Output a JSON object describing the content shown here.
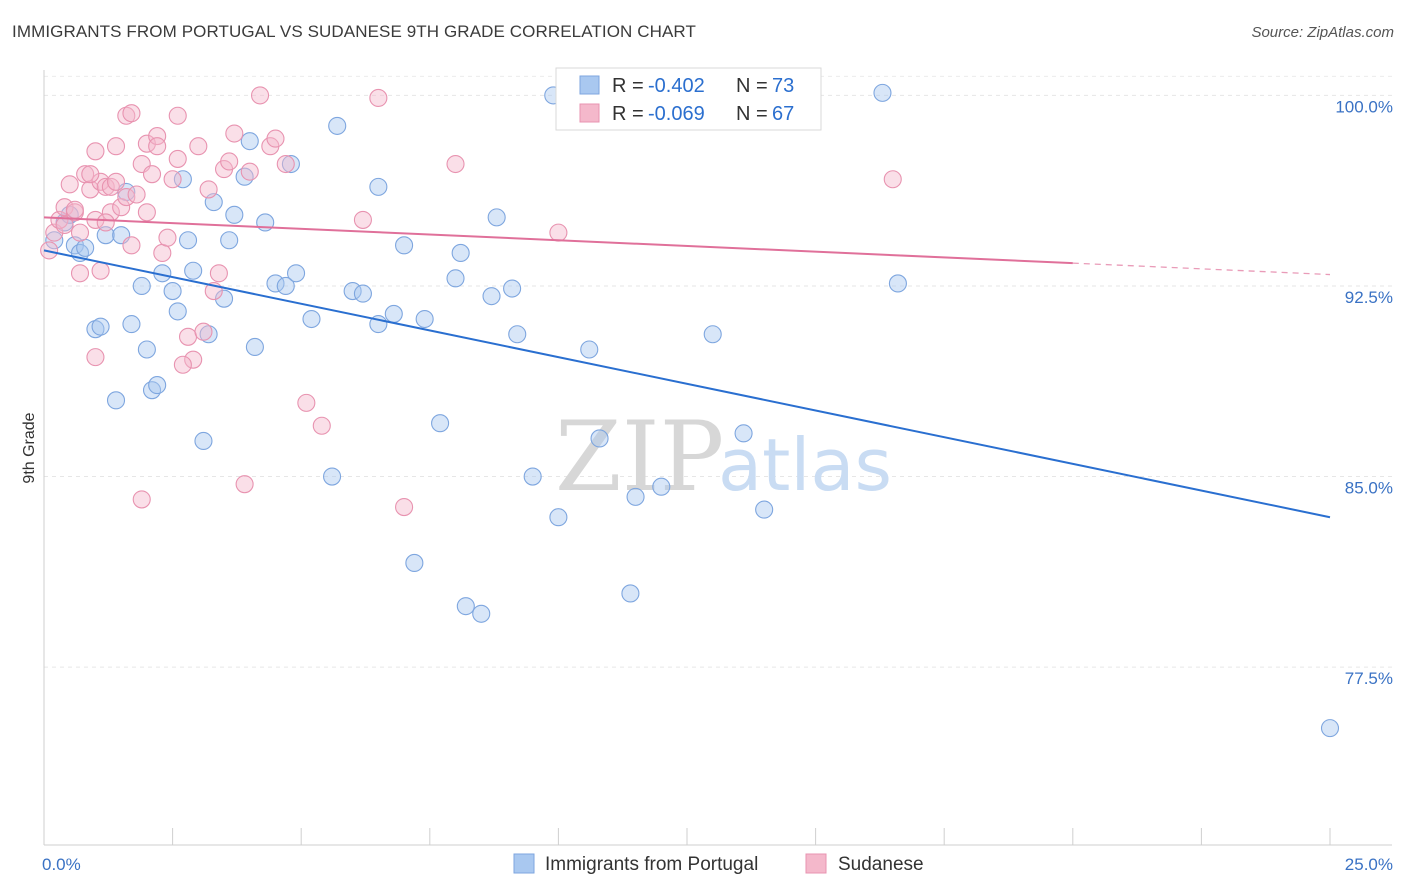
{
  "header": {
    "title": "IMMIGRANTS FROM PORTUGAL VS SUDANESE 9TH GRADE CORRELATION CHART",
    "source": "Source: ZipAtlas.com"
  },
  "watermark": {
    "zip": "ZIP",
    "atlas": "atlas"
  },
  "legend": {
    "r_label": "R =",
    "n_label": "N =",
    "rows": [
      {
        "r": "-0.402",
        "n": "73",
        "color": "#a9c8f0"
      },
      {
        "r": "-0.069",
        "n": "67",
        "color": "#f4b8cb"
      }
    ]
  },
  "bottom_legend": [
    {
      "label": "Immigrants from Portugal",
      "color": "#a9c8f0"
    },
    {
      "label": "Sudanese",
      "color": "#f4b8cb"
    }
  ],
  "chart_data": {
    "type": "scatter",
    "ylabel": "9th Grade",
    "xlim": [
      0,
      25
    ],
    "ylim": [
      70.5,
      101
    ],
    "x_tick_labels": [
      {
        "value": 0,
        "label": "0.0%"
      },
      {
        "value": 25,
        "label": "25.0%"
      }
    ],
    "y_tick_labels": [
      {
        "value": 100,
        "label": "100.0%"
      },
      {
        "value": 92.5,
        "label": "92.5%"
      },
      {
        "value": 85,
        "label": "85.0%"
      },
      {
        "value": 77.5,
        "label": "77.5%"
      }
    ],
    "grid": true,
    "series": [
      {
        "name": "Immigrants from Portugal",
        "color": "#a9c8f0",
        "line_color": "#2a6fd0",
        "trend": {
          "x": [
            0.0,
            25.0
          ],
          "y": [
            93.9,
            83.4
          ]
        },
        "points": [
          [
            0.2,
            94.3
          ],
          [
            0.4,
            95.0
          ],
          [
            0.5,
            95.3
          ],
          [
            0.6,
            94.1
          ],
          [
            0.7,
            93.8
          ],
          [
            0.8,
            94.0
          ],
          [
            1.0,
            90.8
          ],
          [
            1.1,
            90.9
          ],
          [
            1.2,
            94.5
          ],
          [
            1.4,
            88.0
          ],
          [
            1.5,
            94.5
          ],
          [
            1.6,
            96.2
          ],
          [
            1.7,
            91.0
          ],
          [
            1.9,
            92.5
          ],
          [
            2.0,
            90.0
          ],
          [
            2.1,
            88.4
          ],
          [
            2.2,
            88.6
          ],
          [
            2.3,
            93.0
          ],
          [
            2.5,
            92.3
          ],
          [
            2.6,
            91.5
          ],
          [
            2.7,
            96.7
          ],
          [
            2.8,
            94.3
          ],
          [
            2.9,
            93.1
          ],
          [
            3.1,
            86.4
          ],
          [
            3.2,
            90.6
          ],
          [
            3.3,
            95.8
          ],
          [
            3.5,
            92.0
          ],
          [
            3.6,
            94.3
          ],
          [
            3.7,
            95.3
          ],
          [
            3.9,
            96.8
          ],
          [
            4.0,
            98.2
          ],
          [
            4.1,
            90.1
          ],
          [
            4.3,
            95.0
          ],
          [
            4.5,
            92.6
          ],
          [
            4.7,
            92.5
          ],
          [
            4.8,
            97.3
          ],
          [
            4.9,
            93.0
          ],
          [
            5.2,
            91.2
          ],
          [
            5.6,
            85.0
          ],
          [
            5.7,
            98.8
          ],
          [
            6.0,
            92.3
          ],
          [
            6.2,
            92.2
          ],
          [
            6.5,
            96.4
          ],
          [
            6.5,
            91.0
          ],
          [
            6.8,
            91.4
          ],
          [
            7.0,
            94.1
          ],
          [
            7.2,
            81.6
          ],
          [
            7.4,
            91.2
          ],
          [
            7.7,
            87.1
          ],
          [
            8.0,
            92.8
          ],
          [
            8.1,
            93.8
          ],
          [
            8.2,
            79.9
          ],
          [
            8.5,
            79.6
          ],
          [
            8.7,
            92.1
          ],
          [
            8.8,
            95.2
          ],
          [
            9.1,
            92.4
          ],
          [
            9.2,
            90.6
          ],
          [
            9.5,
            85.0
          ],
          [
            9.9,
            100.0
          ],
          [
            10.2,
            100.0
          ],
          [
            10.6,
            90.0
          ],
          [
            10.8,
            86.5
          ],
          [
            11.4,
            80.4
          ],
          [
            11.5,
            84.2
          ],
          [
            12.0,
            84.6
          ],
          [
            13.0,
            90.6
          ],
          [
            13.6,
            86.7
          ],
          [
            14.0,
            83.7
          ],
          [
            14.4,
            100.0
          ],
          [
            16.3,
            100.1
          ],
          [
            16.6,
            92.6
          ],
          [
            10.0,
            83.4
          ],
          [
            25.0,
            75.1
          ]
        ]
      },
      {
        "name": "Sudanese",
        "color": "#f4b8cb",
        "line_color": "#e0709a",
        "trend": {
          "x": [
            0.0,
            20.0
          ],
          "y": [
            95.2,
            93.4
          ]
        },
        "points": [
          [
            0.1,
            93.9
          ],
          [
            0.2,
            94.6
          ],
          [
            0.3,
            95.1
          ],
          [
            0.4,
            95.6
          ],
          [
            0.4,
            94.9
          ],
          [
            0.5,
            96.5
          ],
          [
            0.6,
            95.4
          ],
          [
            0.7,
            94.6
          ],
          [
            0.7,
            93.0
          ],
          [
            0.8,
            96.9
          ],
          [
            0.9,
            96.3
          ],
          [
            1.0,
            97.8
          ],
          [
            1.0,
            95.1
          ],
          [
            1.0,
            89.7
          ],
          [
            1.1,
            93.1
          ],
          [
            1.1,
            96.6
          ],
          [
            1.2,
            96.4
          ],
          [
            1.3,
            95.4
          ],
          [
            1.3,
            96.4
          ],
          [
            1.4,
            96.6
          ],
          [
            1.4,
            98.0
          ],
          [
            1.5,
            95.6
          ],
          [
            1.6,
            99.2
          ],
          [
            1.6,
            96.0
          ],
          [
            1.7,
            94.1
          ],
          [
            1.7,
            99.3
          ],
          [
            1.8,
            96.1
          ],
          [
            1.9,
            97.3
          ],
          [
            2.0,
            95.4
          ],
          [
            2.0,
            98.1
          ],
          [
            2.1,
            96.9
          ],
          [
            2.2,
            98.4
          ],
          [
            2.3,
            93.8
          ],
          [
            2.4,
            94.4
          ],
          [
            2.5,
            96.7
          ],
          [
            2.6,
            97.5
          ],
          [
            2.6,
            99.2
          ],
          [
            2.8,
            90.5
          ],
          [
            2.9,
            89.6
          ],
          [
            3.0,
            98.0
          ],
          [
            3.1,
            90.7
          ],
          [
            3.2,
            96.3
          ],
          [
            3.3,
            92.3
          ],
          [
            3.4,
            93.0
          ],
          [
            3.5,
            97.1
          ],
          [
            3.7,
            98.5
          ],
          [
            3.9,
            84.7
          ],
          [
            4.0,
            97.0
          ],
          [
            4.2,
            100.0
          ],
          [
            4.4,
            98.0
          ],
          [
            4.5,
            98.3
          ],
          [
            4.7,
            97.3
          ],
          [
            5.1,
            87.9
          ],
          [
            5.4,
            87.0
          ],
          [
            6.2,
            95.1
          ],
          [
            6.5,
            99.9
          ],
          [
            7.0,
            83.8
          ],
          [
            8.0,
            97.3
          ],
          [
            10.0,
            94.6
          ],
          [
            1.9,
            84.1
          ],
          [
            2.7,
            89.4
          ],
          [
            16.5,
            96.7
          ],
          [
            0.9,
            96.9
          ],
          [
            1.2,
            95.0
          ],
          [
            0.6,
            95.5
          ],
          [
            3.6,
            97.4
          ],
          [
            2.2,
            98.0
          ]
        ]
      }
    ]
  }
}
